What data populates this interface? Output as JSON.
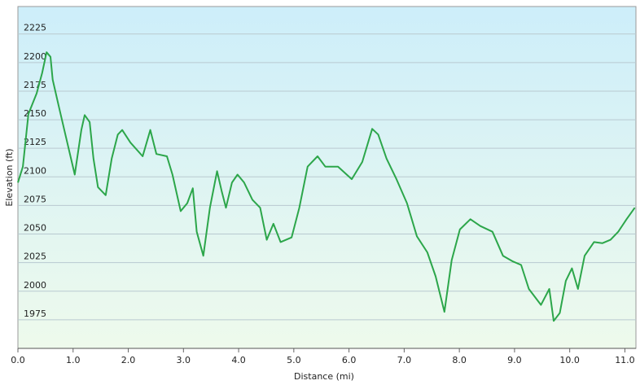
{
  "chart_data": {
    "type": "line",
    "x_label": "Distance  (mi)",
    "y_label": "Elevation (ft)",
    "x": [
      0,
      0.09,
      0.19,
      0.34,
      0.44,
      0.52,
      0.59,
      0.63,
      0.74,
      0.86,
      1.03,
      1.15,
      1.21,
      1.3,
      1.37,
      1.45,
      1.59,
      1.7,
      1.81,
      1.89,
      2.04,
      2.26,
      2.4,
      2.51,
      2.7,
      2.8,
      2.95,
      3.07,
      3.17,
      3.24,
      3.36,
      3.48,
      3.61,
      3.69,
      3.77,
      3.88,
      3.98,
      4.1,
      4.25,
      4.39,
      4.51,
      4.63,
      4.76,
      4.96,
      5.1,
      5.25,
      5.43,
      5.57,
      5.8,
      6.05,
      6.24,
      6.42,
      6.53,
      6.68,
      6.86,
      7.05,
      7.23,
      7.42,
      7.57,
      7.73,
      7.86,
      8.01,
      8.2,
      8.38,
      8.6,
      8.79,
      8.97,
      9.12,
      9.26,
      9.48,
      9.63,
      9.71,
      9.82,
      9.93,
      10.04,
      10.15,
      10.27,
      10.44,
      10.59,
      10.74,
      10.88,
      11.03,
      11.18
    ],
    "values": [
      2095,
      2109,
      2155,
      2173,
      2191,
      2209,
      2205,
      2185,
      2162,
      2137,
      2102,
      2141,
      2154,
      2148,
      2116,
      2091,
      2084,
      2116,
      2137,
      2141,
      2130,
      2118,
      2141,
      2120,
      2118,
      2102,
      2070,
      2077,
      2090,
      2052,
      2031,
      2073,
      2105,
      2088,
      2073,
      2095,
      2102,
      2095,
      2080,
      2073,
      2045,
      2059,
      2043,
      2047,
      2073,
      2109,
      2118,
      2109,
      2109,
      2098,
      2113,
      2142,
      2137,
      2116,
      2098,
      2077,
      2048,
      2034,
      2013,
      1982,
      2027,
      2054,
      2063,
      2057,
      2052,
      2031,
      2026,
      2023,
      2002,
      1988,
      2002,
      1974,
      1981,
      2009,
      2020,
      2002,
      2031,
      2043,
      2042,
      2045,
      2052,
      2063,
      2073
    ],
    "color": "#2ca64a",
    "xlim": [
      0,
      11.2
    ],
    "ylim": [
      1950,
      2249
    ],
    "xticks": [
      {
        "value": 0,
        "label": "0.0"
      },
      {
        "value": 1,
        "label": "1.0"
      },
      {
        "value": 2,
        "label": "2.0"
      },
      {
        "value": 3,
        "label": "3.0"
      },
      {
        "value": 4,
        "label": "4.0"
      },
      {
        "value": 5,
        "label": "5.0"
      },
      {
        "value": 6,
        "label": "6.0"
      },
      {
        "value": 7,
        "label": "7.0"
      },
      {
        "value": 8,
        "label": "8.0"
      },
      {
        "value": 9,
        "label": "9.0"
      },
      {
        "value": 10,
        "label": "10.0"
      },
      {
        "value": 11,
        "label": "11.0"
      }
    ],
    "yticks": [
      1975,
      2000,
      2025,
      2050,
      2075,
      2100,
      2125,
      2150,
      2175,
      2200,
      2225
    ],
    "grid": true
  }
}
